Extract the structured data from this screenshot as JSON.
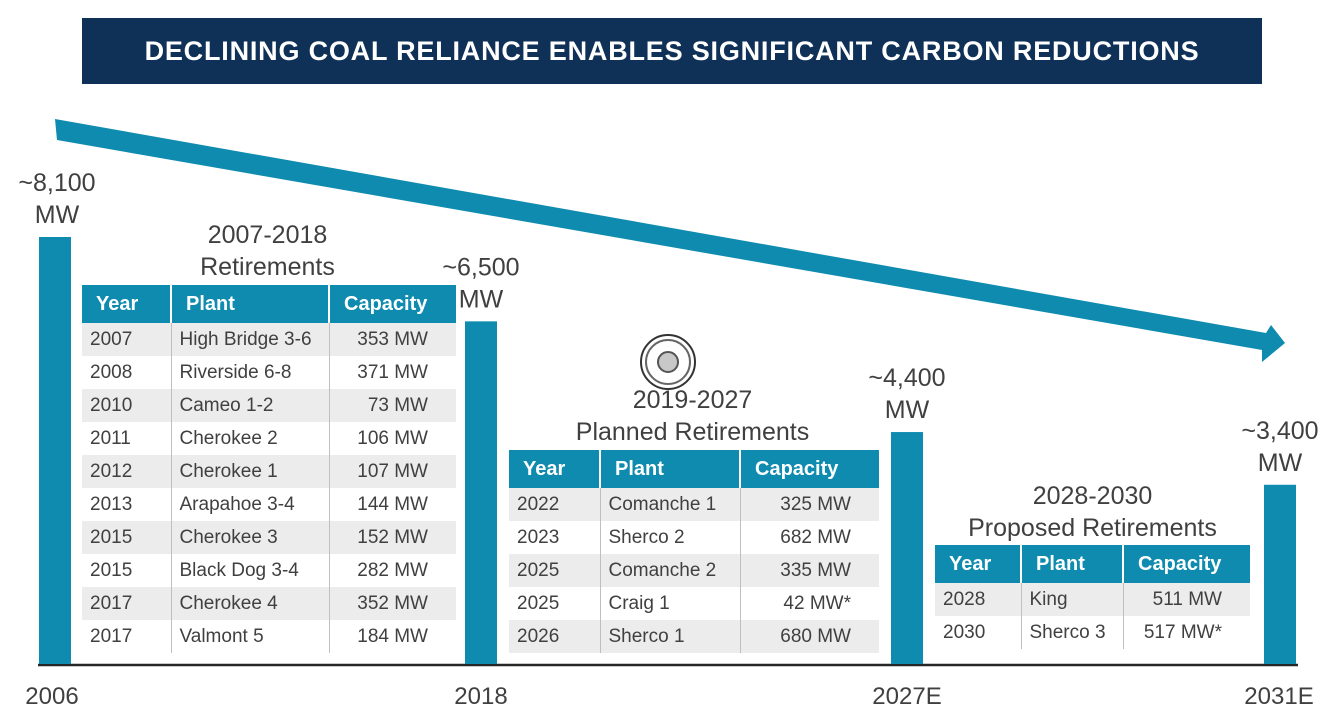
{
  "title": "DECLINING COAL RELIANCE ENABLES SIGNIFICANT CARBON REDUCTIONS",
  "colors": {
    "banner": "#0f3057",
    "bar": "#0f8bb0",
    "header": "#0f8bb0",
    "shade": "#ececec"
  },
  "chart_data": {
    "type": "bar",
    "categories": [
      "2006",
      "2018",
      "2027E",
      "2031E"
    ],
    "values": [
      8100,
      6500,
      4400,
      3400
    ],
    "value_labels": [
      "~8,100\nMW",
      "~6,500\nMW",
      "~4,400\nMW",
      "~3,400\nMW"
    ],
    "trend_arrow": "downward",
    "grid": false
  },
  "sections": [
    {
      "title_line1": "2007-2018",
      "title_line2": "Retirements",
      "headers": [
        "Year",
        "Plant",
        "Capacity"
      ],
      "rows": [
        [
          "2007",
          "High Bridge 3-6",
          "353 MW"
        ],
        [
          "2008",
          "Riverside 6-8",
          "371 MW"
        ],
        [
          "2010",
          "Cameo 1-2",
          "73 MW"
        ],
        [
          "2011",
          "Cherokee 2",
          "106 MW"
        ],
        [
          "2012",
          "Cherokee 1",
          "107 MW"
        ],
        [
          "2013",
          "Arapahoe 3-4",
          "144 MW"
        ],
        [
          "2015",
          "Cherokee 3",
          "152 MW"
        ],
        [
          "2015",
          "Black Dog 3-4",
          "282 MW"
        ],
        [
          "2017",
          "Cherokee 4",
          "352 MW"
        ],
        [
          "2017",
          "Valmont 5",
          "184 MW"
        ]
      ]
    },
    {
      "title_line1": "2019-2027",
      "title_line2": "Planned Retirements",
      "headers": [
        "Year",
        "Plant",
        "Capacity"
      ],
      "rows": [
        [
          "2022",
          "Comanche 1",
          "325 MW"
        ],
        [
          "2023",
          "Sherco 2",
          "682 MW"
        ],
        [
          "2025",
          "Comanche 2",
          "335 MW"
        ],
        [
          "2025",
          "Craig 1",
          "42 MW*"
        ],
        [
          "2026",
          "Sherco 1",
          "680 MW"
        ]
      ]
    },
    {
      "title_line1": "2028-2030",
      "title_line2": "Proposed Retirements",
      "headers": [
        "Year",
        "Plant",
        "Capacity"
      ],
      "rows": [
        [
          "2028",
          "King",
          "511 MW"
        ],
        [
          "2030",
          "Sherco 3",
          "517 MW*"
        ]
      ]
    }
  ]
}
